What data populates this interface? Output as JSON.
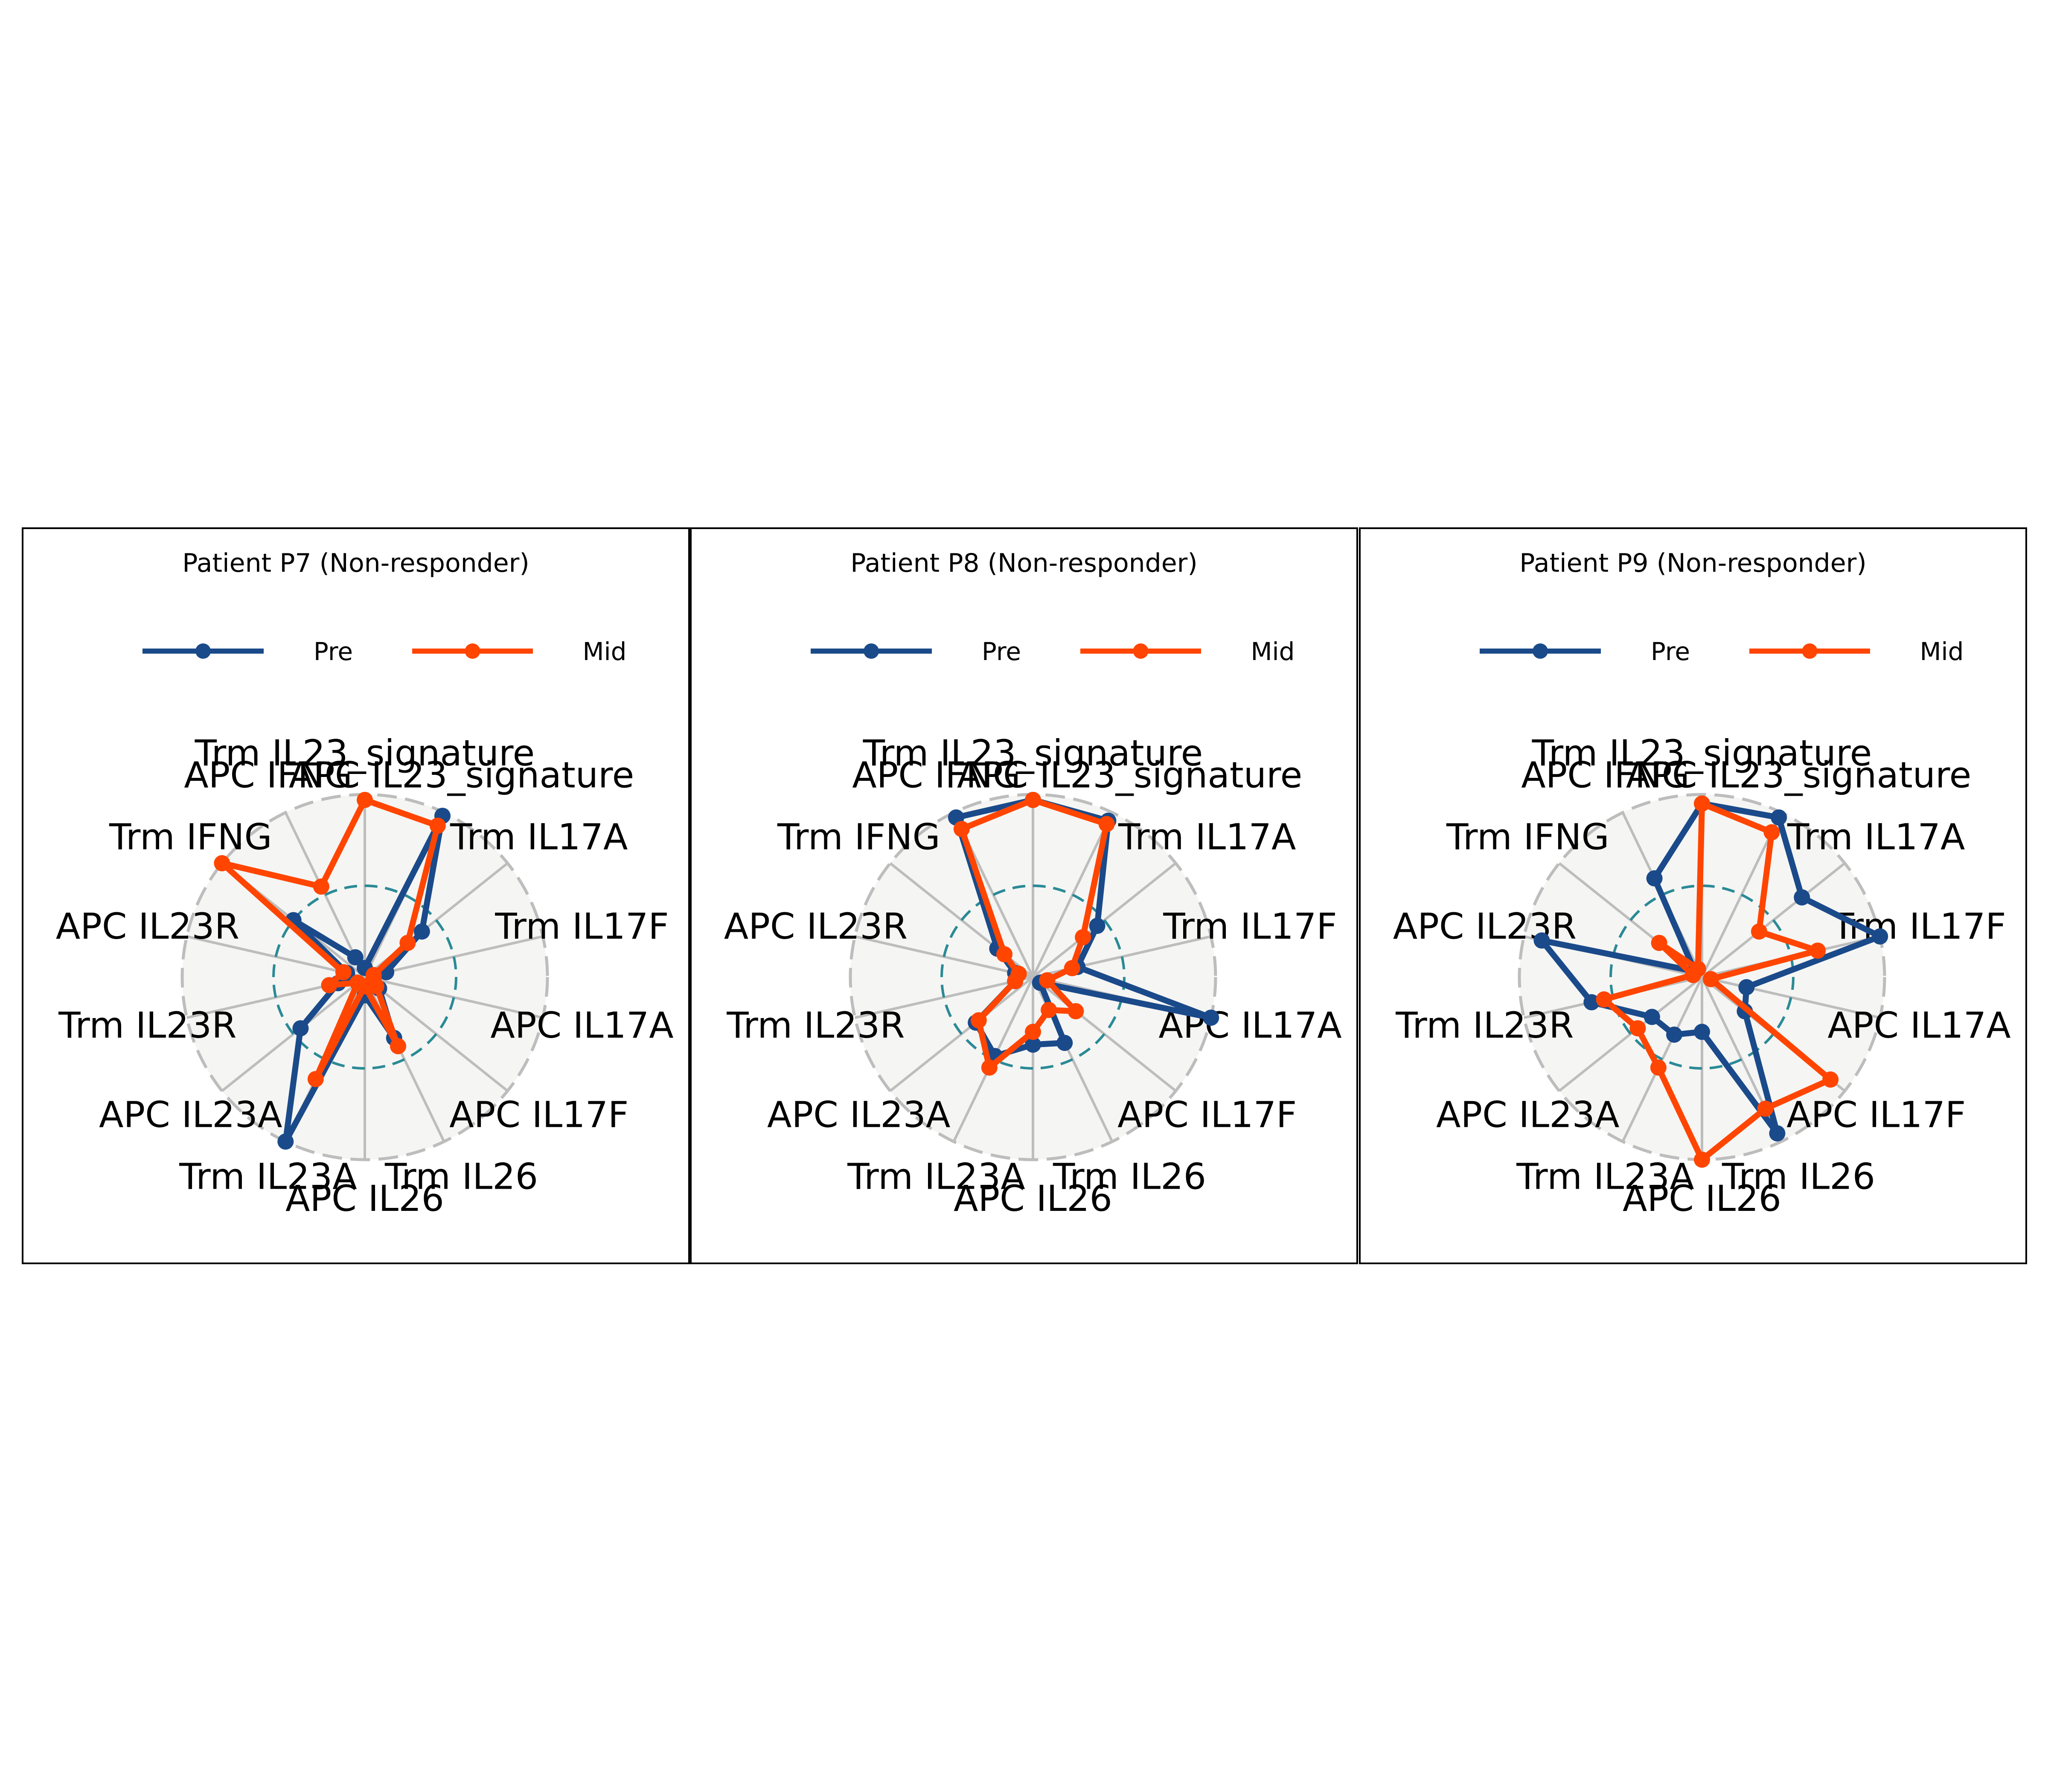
{
  "chart_data": [
    {
      "type": "radar",
      "title": "Patient P7 (Non-responder)",
      "legend": {
        "placement": "top-center",
        "ncol": 2
      },
      "axes": [
        "Trm IL23_signature",
        "APC IL23_signature",
        "Trm IL17A",
        "Trm IL17F",
        "APC IL17A",
        "APC IL17F",
        "Trm IL26",
        "APC IL26",
        "Trm IL23A",
        "APC IL23A",
        "Trm IL23R",
        "APC IL23R",
        "Trm IFNG",
        "APC IFNG"
      ],
      "rlim": [
        0,
        1
      ],
      "reference_circle": 0.5,
      "series": [
        {
          "name": "Pre",
          "color": "#1a4a8a",
          "values": [
            0.05,
            0.98,
            0.4,
            0.12,
            0.05,
            0.1,
            0.37,
            0.1,
            1.0,
            0.45,
            0.15,
            0.1,
            0.5,
            0.12
          ]
        },
        {
          "name": "Mid",
          "color": "#ff4500",
          "values": [
            0.97,
            0.92,
            0.3,
            0.05,
            0.05,
            0.08,
            0.42,
            0.05,
            0.62,
            0.05,
            0.2,
            0.12,
            1.0,
            0.55
          ]
        }
      ]
    },
    {
      "type": "radar",
      "title": "Patient P8 (Non-responder)",
      "legend": {
        "placement": "top-center",
        "ncol": 2
      },
      "axes": [
        "Trm IL23_signature",
        "APC IL23_signature",
        "Trm IL17A",
        "Trm IL17F",
        "APC IL17A",
        "APC IL17F",
        "Trm IL26",
        "APC IL26",
        "Trm IL23A",
        "APC IL23A",
        "Trm IL23R",
        "APC IL23R",
        "Trm IFNG",
        "APC IFNG"
      ],
      "rlim": [
        0,
        1
      ],
      "reference_circle": 0.5,
      "series": [
        {
          "name": "Pre",
          "color": "#1a4a8a",
          "values": [
            0.97,
            0.95,
            0.45,
            0.25,
            1.0,
            0.05,
            0.4,
            0.37,
            0.48,
            0.4,
            0.1,
            0.1,
            0.25,
            0.97
          ]
        },
        {
          "name": "Mid",
          "color": "#ff4500",
          "values": [
            0.97,
            0.93,
            0.35,
            0.22,
            0.08,
            0.3,
            0.2,
            0.3,
            0.55,
            0.38,
            0.1,
            0.08,
            0.2,
            0.9
          ]
        }
      ]
    },
    {
      "type": "radar",
      "title": "Patient P9 (Non-responder)",
      "legend": {
        "placement": "top-center",
        "ncol": 2
      },
      "axes": [
        "Trm IL23_signature",
        "APC IL23_signature",
        "Trm IL17A",
        "Trm IL17F",
        "APC IL17A",
        "APC IL17F",
        "Trm IL26",
        "APC IL26",
        "Trm IL23A",
        "APC IL23A",
        "Trm IL23R",
        "APC IL23R",
        "Trm IFNG",
        "APC IFNG"
      ],
      "rlim": [
        0,
        1
      ],
      "reference_circle": 0.5,
      "series": [
        {
          "name": "Pre",
          "color": "#1a4a8a",
          "values": [
            0.95,
            0.97,
            0.7,
            1.0,
            0.25,
            0.3,
            0.95,
            0.3,
            0.35,
            0.35,
            0.62,
            0.9,
            0.05,
            0.6
          ]
        },
        {
          "name": "Mid",
          "color": "#ff4500",
          "values": [
            0.95,
            0.88,
            0.4,
            0.65,
            0.05,
            0.9,
            0.8,
            1.0,
            0.55,
            0.45,
            0.55,
            0.05,
            0.3,
            0.05
          ]
        }
      ]
    }
  ]
}
